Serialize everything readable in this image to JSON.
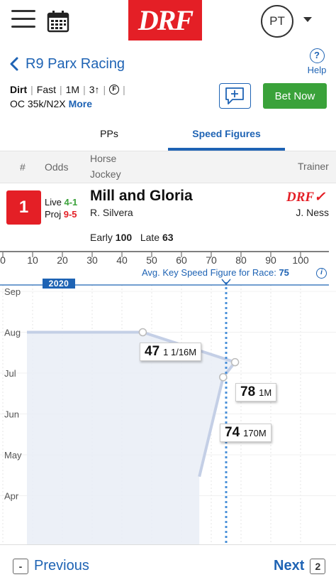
{
  "header": {
    "logo_text": "DRF",
    "avatar_initials": "PT"
  },
  "race": {
    "title": "R9 Parx Racing",
    "help_label": "Help",
    "help_symbol": "?",
    "surface": "Dirt",
    "condition": "Fast",
    "distance": "1M",
    "age": "3↑",
    "sex_symbol": "F",
    "class": "OC 35k/N2X",
    "more_label": "More",
    "bet_label": "Bet Now"
  },
  "tabs": [
    {
      "label": "PPs",
      "active": false
    },
    {
      "label": "Speed Figures",
      "active": true
    }
  ],
  "columns": {
    "number": "#",
    "odds": "Odds",
    "horse": "Horse",
    "jockey": "Jockey",
    "trainer": "Trainer"
  },
  "entry": {
    "post": "1",
    "live_label": "Live",
    "live_odds": "4-1",
    "proj_label": "Proj",
    "proj_odds": "9-5",
    "horse": "Mill and Gloria",
    "jockey": "R. Silvera",
    "trainer": "J. Ness",
    "trainer_logo": "DRF✓",
    "early_label": "Early",
    "early_value": "100",
    "late_label": "Late",
    "late_value": "63"
  },
  "chart_data": {
    "type": "line",
    "x_axis_ticks": [
      "0",
      "10",
      "20",
      "30",
      "40",
      "50",
      "60",
      "70",
      "80",
      "90",
      "100"
    ],
    "xlim": [
      0,
      110
    ],
    "y_axis_ticks": [
      "Sep",
      "Aug",
      "Jul",
      "Jun",
      "May",
      "Apr"
    ],
    "year_label": "2020",
    "key_figure_label": "Avg. Key Speed Figure for Race:",
    "key_figure_value": 75,
    "points": [
      {
        "figure": 47,
        "distance": "1 1/16M",
        "date": "2020-08-01"
      },
      {
        "figure": 78,
        "distance": "1M",
        "date": "2020-07-09"
      },
      {
        "figure": 74,
        "distance": "170M",
        "date": "2020-06-28"
      },
      {
        "figure": 66,
        "distance": "",
        "date": "2020-04-15"
      }
    ],
    "colors": {
      "line": "#c4cfe6",
      "fill": "#e9edf6",
      "key": "#4a90d9"
    }
  },
  "footer": {
    "prev_key": "-",
    "prev_label": "Previous",
    "next_label": "Next",
    "next_key": "2"
  }
}
